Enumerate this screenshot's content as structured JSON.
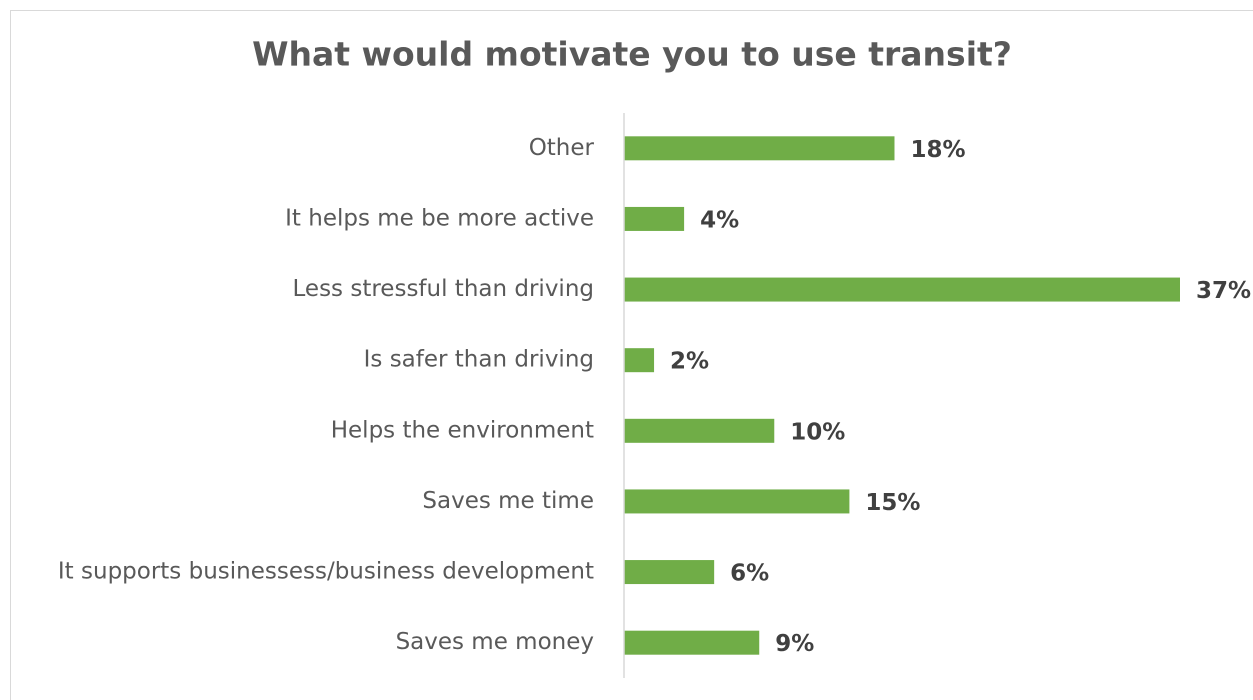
{
  "chart_data": {
    "type": "barh",
    "title": "What would motivate you to use transit?",
    "categories": [
      "Other",
      "It helps me be more active",
      "Less stressful than driving",
      "Is safer than driving",
      "Helps the environment",
      "Saves me time",
      "It supports businessess/business development",
      "Saves me money"
    ],
    "values": [
      18,
      4,
      37,
      2,
      10,
      15,
      6,
      9
    ],
    "value_labels": [
      "18%",
      "4%",
      "37%",
      "2%",
      "10%",
      "15%",
      "6%",
      "9%"
    ],
    "color": "#70ad47"
  }
}
